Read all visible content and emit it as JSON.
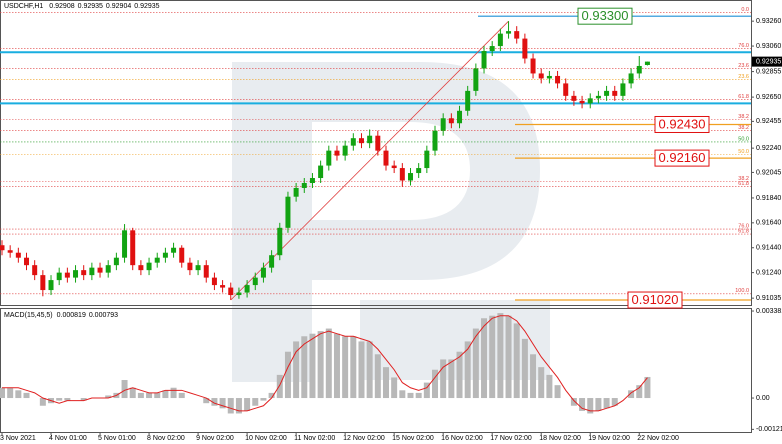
{
  "chart_data": [
    {
      "type": "candlestick",
      "title": "USDCHF,H1",
      "categories": [
        "3 Nov 2021",
        null,
        null,
        null,
        null,
        null,
        "4 Nov 01:00",
        null,
        null,
        null,
        null,
        null,
        "5 Nov 01:00",
        null,
        null,
        null,
        null,
        null,
        "8 Nov 02:00",
        null,
        null,
        null,
        null,
        null,
        "9 Nov 02:00",
        null,
        null,
        null,
        null,
        null,
        "10 Nov 02:00",
        null,
        null,
        null,
        null,
        null,
        "11 Nov 02:00",
        null,
        null,
        null,
        null,
        null,
        "12 Nov 02:00",
        null,
        null,
        null,
        null,
        null,
        "15 Nov 02:00",
        null,
        null,
        null,
        null,
        null,
        "16 Nov 02:00",
        null,
        null,
        null,
        null,
        null,
        "17 Nov 02:00",
        null,
        null,
        null,
        null,
        null,
        "18 Nov 02:00",
        null,
        null,
        null,
        null,
        null,
        "19 Nov 02:00",
        null,
        null,
        null,
        null,
        null,
        "22 Nov 02:00",
        null
      ],
      "open": [
        0.9146,
        0.9142,
        0.914,
        0.9136,
        0.913,
        0.9122,
        0.911,
        0.9118,
        0.9124,
        0.912,
        0.9126,
        0.9122,
        0.9128,
        0.9124,
        0.913,
        0.9136,
        0.9158,
        0.913,
        0.9126,
        0.9132,
        0.9136,
        0.914,
        0.9144,
        0.9132,
        0.9126,
        0.913,
        0.912,
        0.9114,
        0.9112,
        0.9106,
        0.9108,
        0.9114,
        0.912,
        0.9128,
        0.9138,
        0.916,
        0.9185,
        0.9192,
        0.9196,
        0.92,
        0.921,
        0.9222,
        0.9218,
        0.9226,
        0.9232,
        0.9228,
        0.9234,
        0.9222,
        0.921,
        0.9208,
        0.9198,
        0.9204,
        0.9208,
        0.9222,
        0.9238,
        0.9248,
        0.9244,
        0.9254,
        0.927,
        0.9288,
        0.9302,
        0.9306,
        0.9316,
        0.9318,
        0.9312,
        0.9296,
        0.9284,
        0.928,
        0.9282,
        0.9276,
        0.9266,
        0.9262,
        0.926,
        0.9264,
        0.9266,
        0.927,
        0.9266,
        0.9276,
        0.9284,
        0.92908
      ],
      "high": [
        0.915,
        0.9146,
        0.9144,
        0.914,
        0.9134,
        0.9126,
        0.9122,
        0.9128,
        0.9128,
        0.913,
        0.913,
        0.9132,
        0.9132,
        0.9134,
        0.914,
        0.9163,
        0.916,
        0.9134,
        0.9136,
        0.914,
        0.9144,
        0.9148,
        0.9146,
        0.9136,
        0.9134,
        0.9134,
        0.9124,
        0.9118,
        0.9116,
        0.9112,
        0.9118,
        0.9124,
        0.9132,
        0.9142,
        0.9164,
        0.9189,
        0.9196,
        0.92,
        0.9204,
        0.9214,
        0.9226,
        0.9226,
        0.923,
        0.9236,
        0.9236,
        0.9239,
        0.9238,
        0.9226,
        0.9214,
        0.9212,
        0.9208,
        0.9212,
        0.9226,
        0.9242,
        0.9252,
        0.9252,
        0.9258,
        0.9274,
        0.9292,
        0.9306,
        0.931,
        0.932,
        0.9326,
        0.9322,
        0.9316,
        0.93,
        0.9288,
        0.9286,
        0.9286,
        0.928,
        0.927,
        0.9266,
        0.9268,
        0.927,
        0.9274,
        0.9274,
        0.928,
        0.9288,
        0.9298,
        0.92935
      ],
      "low": [
        0.9138,
        0.9136,
        0.9132,
        0.9126,
        0.9118,
        0.9105,
        0.9106,
        0.9114,
        0.9116,
        0.9116,
        0.9118,
        0.9118,
        0.912,
        0.912,
        0.9126,
        0.9132,
        0.9126,
        0.9122,
        0.9122,
        0.9128,
        0.9132,
        0.9136,
        0.9128,
        0.9122,
        0.9122,
        0.9116,
        0.911,
        0.9108,
        0.9102,
        0.9103,
        0.9104,
        0.911,
        0.9116,
        0.9124,
        0.9134,
        0.9156,
        0.9181,
        0.9188,
        0.9192,
        0.9196,
        0.9206,
        0.9214,
        0.9214,
        0.9222,
        0.9224,
        0.9224,
        0.9218,
        0.9206,
        0.9204,
        0.9193,
        0.9194,
        0.92,
        0.9204,
        0.9218,
        0.9234,
        0.924,
        0.924,
        0.925,
        0.9266,
        0.9284,
        0.9298,
        0.9302,
        0.9312,
        0.9308,
        0.9292,
        0.928,
        0.9276,
        0.9276,
        0.9272,
        0.9262,
        0.9258,
        0.9256,
        0.9256,
        0.926,
        0.9262,
        0.9262,
        0.9262,
        0.9272,
        0.928,
        0.92904
      ],
      "close": [
        0.9142,
        0.914,
        0.9136,
        0.913,
        0.9122,
        0.911,
        0.9118,
        0.9124,
        0.912,
        0.9126,
        0.9122,
        0.9128,
        0.9124,
        0.913,
        0.9136,
        0.9158,
        0.913,
        0.9126,
        0.9132,
        0.9136,
        0.914,
        0.9144,
        0.9132,
        0.9126,
        0.913,
        0.912,
        0.9114,
        0.9112,
        0.9106,
        0.9108,
        0.9114,
        0.912,
        0.9128,
        0.9138,
        0.916,
        0.9185,
        0.9192,
        0.9196,
        0.92,
        0.921,
        0.9222,
        0.9218,
        0.9226,
        0.9232,
        0.9228,
        0.9234,
        0.9222,
        0.921,
        0.9208,
        0.9198,
        0.9204,
        0.9208,
        0.9222,
        0.9238,
        0.9248,
        0.9244,
        0.9254,
        0.927,
        0.9288,
        0.9302,
        0.9306,
        0.9316,
        0.9318,
        0.9312,
        0.9296,
        0.9284,
        0.928,
        0.9282,
        0.9276,
        0.9266,
        0.9262,
        0.926,
        0.9264,
        0.9266,
        0.927,
        0.9266,
        0.9276,
        0.9284,
        0.929,
        0.92935
      ],
      "up_color": "#12a312",
      "down_color": "#e01010",
      "ylim": [
        0.9098,
        0.9343
      ],
      "yticks": [
        {
          "value": 0.9326,
          "label": "0.93260"
        },
        {
          "value": 0.9306,
          "label": "0.93060"
        },
        0.92855,
        {
          "value": 0.9265,
          "label": "0.92650"
        },
        0.92455,
        {
          "value": 0.9224,
          "label": "0.92240"
        },
        0.92045,
        {
          "value": 0.9184,
          "label": "0.91840"
        },
        {
          "value": 0.9164,
          "label": "0.91640"
        },
        {
          "value": 0.9144,
          "label": "0.91440"
        },
        {
          "value": 0.9124,
          "label": "0.91240"
        },
        0.91035
      ],
      "grid": false,
      "levels": [
        {
          "value": 0.933,
          "label": "0.93300",
          "color": "#1f8fd6",
          "label_color": "#2a8f2a"
        },
        {
          "value": 0.9301,
          "color": "#19aee0"
        },
        {
          "value": 0.926,
          "color": "#19aee0"
        },
        {
          "value": 0.9243,
          "label": "0.92430",
          "color": "#f0a020",
          "label_color": "#e01010"
        },
        {
          "value": 0.9216,
          "label": "0.92160",
          "color": "#f0a020",
          "label_color": "#e01010"
        },
        {
          "value": 0.9102,
          "label": "0.91020",
          "color": "#f0a020",
          "label_color": "#e01010"
        }
      ],
      "fibo": [
        {
          "value": 0.9333,
          "label": "0.0",
          "color": "#e04040"
        },
        {
          "value": 0.9304,
          "label": "76.0",
          "color": "#e04040"
        },
        {
          "value": 0.9288,
          "label": "23.6",
          "color": "#e04040"
        },
        {
          "value": 0.9279,
          "label": "23.6",
          "color": "#f0a020"
        },
        {
          "value": 0.9263,
          "label": "61.8",
          "color": "#e04040"
        },
        {
          "value": 0.9247,
          "label": "38.2",
          "color": "#e04040"
        },
        {
          "value": 0.9238,
          "label": "38.2",
          "color": "#e04040"
        },
        {
          "value": 0.9229,
          "label": "50.0",
          "color": "#2a9a2a"
        },
        {
          "value": 0.9219,
          "label": "50.0",
          "color": "#f0a020"
        },
        {
          "value": 0.9197,
          "label": "38.2",
          "color": "#e04040"
        },
        {
          "value": 0.9193,
          "label": "61.8",
          "color": "#e04040"
        },
        {
          "value": 0.9159,
          "label": "76.0",
          "color": "#e04040"
        },
        {
          "value": 0.9155,
          "label": "61.8",
          "color": "#e04040"
        },
        {
          "value": 0.9107,
          "label": "100.0",
          "color": "#e04040"
        }
      ],
      "trendline": {
        "start": 0.9102,
        "end": 0.9326,
        "color": "#e04040"
      }
    },
    {
      "type": "macd",
      "title": "MACD(15,45,5)",
      "macd": [
        0.0004,
        0.0004,
        0.0003,
        0.0002,
        0.0,
        -0.0003,
        -0.0002,
        -0.0001,
        -0.0001,
        0.0,
        -0.0001,
        0.0,
        0.0,
        0.0001,
        0.0002,
        0.0007,
        0.0004,
        0.0002,
        0.0002,
        0.0002,
        0.0003,
        0.0004,
        0.0002,
        0.0,
        0.0,
        -0.0002,
        -0.0003,
        -0.0004,
        -0.0006,
        -0.0006,
        -0.0005,
        -0.0003,
        -0.0001,
        0.0002,
        0.0009,
        0.0018,
        0.0022,
        0.0024,
        0.0025,
        0.0026,
        0.0027,
        0.0025,
        0.0024,
        0.0024,
        0.0022,
        0.0022,
        0.0017,
        0.0012,
        0.0008,
        0.0003,
        0.0002,
        0.0002,
        0.0006,
        0.0011,
        0.0015,
        0.0015,
        0.0018,
        0.0022,
        0.0027,
        0.0031,
        0.0032,
        0.0033,
        0.0032,
        0.0029,
        0.0023,
        0.0017,
        0.0012,
        0.0009,
        0.0005,
        0.0,
        -0.0003,
        -0.0005,
        -0.0006,
        -0.0005,
        -0.0004,
        -0.0003,
        0.0,
        0.0003,
        0.0005,
        0.000819
      ],
      "signal": [
        0.0004,
        0.0004,
        0.0004,
        0.0003,
        0.0002,
        0.0,
        -0.0001,
        -0.0002,
        -0.0001,
        -0.0001,
        -0.0001,
        0.0,
        0.0,
        0.0,
        0.0001,
        0.0003,
        0.0004,
        0.0003,
        0.0002,
        0.0002,
        0.0003,
        0.0003,
        0.0003,
        0.0002,
        0.0001,
        0.0,
        -0.0002,
        -0.0003,
        -0.0004,
        -0.0005,
        -0.0005,
        -0.0004,
        -0.0003,
        0.0,
        0.0005,
        0.0012,
        0.0018,
        0.0021,
        0.0023,
        0.0025,
        0.0026,
        0.0025,
        0.0024,
        0.0024,
        0.0023,
        0.0022,
        0.0019,
        0.0015,
        0.0011,
        0.0006,
        0.0004,
        0.0003,
        0.0004,
        0.0008,
        0.0012,
        0.0014,
        0.0016,
        0.0019,
        0.0024,
        0.0028,
        0.0031,
        0.0032,
        0.0032,
        0.003,
        0.0026,
        0.0021,
        0.0016,
        0.0012,
        0.0008,
        0.0003,
        -0.0001,
        -0.0004,
        -0.0005,
        -0.0005,
        -0.0004,
        -0.0003,
        -0.0001,
        0.0002,
        0.0004,
        0.000793
      ],
      "bar_color": "#b8b8b8",
      "signal_color": "#e02020",
      "ylim": [
        -0.00132,
        0.00346
      ],
      "yticks": [
        0.003381,
        {
          "value": 0,
          "label": "0.00"
        },
        -0.001217
      ]
    }
  ]
}
